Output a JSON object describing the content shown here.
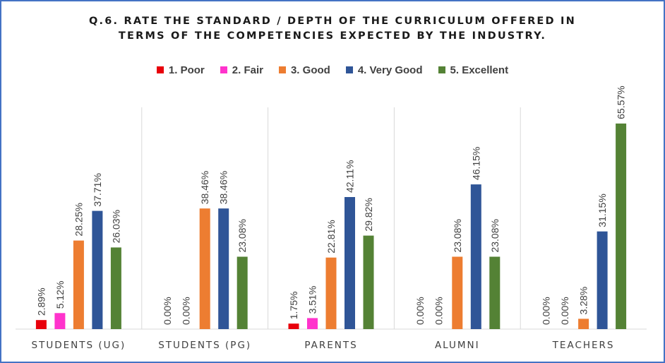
{
  "chart_data": {
    "type": "bar",
    "title_lines": [
      "Q.6. RATE THE STANDARD / DEPTH OF THE CURRICULUM OFFERED IN",
      "TERMS OF THE COMPETENCIES EXPECTED BY THE INDUSTRY."
    ],
    "categories": [
      "STUDENTS (UG)",
      "STUDENTS (PG)",
      "PARENTS",
      "ALUMNI",
      "TEACHERS"
    ],
    "series": [
      {
        "name": "1.  Poor",
        "color": "#e8000b",
        "values": [
          2.89,
          0.0,
          1.75,
          0.0,
          0.0
        ]
      },
      {
        "name": "2.  Fair",
        "color": "#ff33cc",
        "values": [
          5.12,
          0.0,
          3.51,
          0.0,
          0.0
        ]
      },
      {
        "name": "3.  Good",
        "color": "#ed7d31",
        "values": [
          28.25,
          38.46,
          22.81,
          23.08,
          3.28
        ]
      },
      {
        "name": "4.  Very Good",
        "color": "#2f5597",
        "values": [
          37.71,
          38.46,
          42.11,
          46.15,
          31.15
        ]
      },
      {
        "name": "5.  Excellent",
        "color": "#548235",
        "values": [
          26.03,
          23.08,
          29.82,
          23.08,
          65.57
        ]
      }
    ],
    "data_labels": [
      [
        "2.89%",
        "0.00%",
        "1.75%",
        "0.00%",
        "0.00%"
      ],
      [
        "5.12%",
        "0.00%",
        "3.51%",
        "0.00%",
        "0.00%"
      ],
      [
        "28.25%",
        "38.46%",
        "22.81%",
        "23.08%",
        "3.28%"
      ],
      [
        "37.71%",
        "38.46%",
        "42.11%",
        "46.15%",
        "31.15%"
      ],
      [
        "26.03%",
        "23.08%",
        "29.82%",
        "23.08%",
        "65.57%"
      ]
    ],
    "xlabel": "",
    "ylabel": "",
    "ylim": [
      0,
      70
    ],
    "legend_position": "top",
    "grid": false,
    "category_separators": true
  }
}
